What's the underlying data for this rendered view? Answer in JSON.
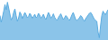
{
  "chart_data": {
    "type": "area",
    "values": [
      55,
      40,
      52,
      65,
      80,
      68,
      85,
      72,
      58,
      45,
      50,
      62,
      70,
      55,
      42,
      50,
      63,
      58,
      48,
      55,
      62,
      57,
      50,
      53,
      60,
      56,
      49,
      53,
      58,
      50,
      53,
      60,
      56,
      49,
      53,
      58,
      50,
      46,
      54,
      62,
      57,
      49,
      53,
      59,
      51,
      47,
      44,
      50,
      55,
      59,
      52,
      46,
      50,
      55,
      52,
      47,
      44,
      50,
      57,
      62,
      54,
      46,
      44,
      47,
      50,
      55,
      52,
      46,
      42,
      48,
      52,
      56,
      60,
      62,
      58,
      52,
      47,
      44,
      42,
      18,
      5,
      32,
      55,
      65,
      60,
      57,
      63,
      68
    ],
    "color": "#5aabdf",
    "ylim": [
      0,
      90
    ],
    "grid": false,
    "tick_labels": false
  }
}
